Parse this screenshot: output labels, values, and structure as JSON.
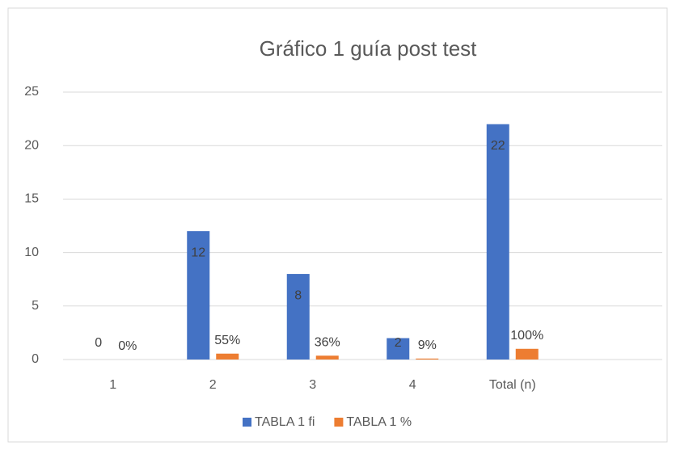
{
  "chart_data": {
    "type": "bar",
    "title": "Gráfico 1 guía post test",
    "categories": [
      "1",
      "2",
      "3",
      "4",
      "Total (n)",
      null
    ],
    "series": [
      {
        "name": "TABLA 1 fi",
        "color": "#4472c4",
        "values": [
          0,
          12,
          8,
          2,
          22,
          null
        ]
      },
      {
        "name": "TABLA 1 %",
        "color": "#ed7d31",
        "values": [
          0,
          0.55,
          0.36,
          0.09,
          1,
          null
        ],
        "value_labels": [
          "0%",
          "55%",
          "36%",
          "9%",
          "100%",
          null
        ]
      }
    ],
    "ylim": [
      0,
      25
    ],
    "yticks": [
      0,
      5,
      10,
      15,
      20,
      25
    ],
    "grid": true,
    "legend": "bottom"
  }
}
